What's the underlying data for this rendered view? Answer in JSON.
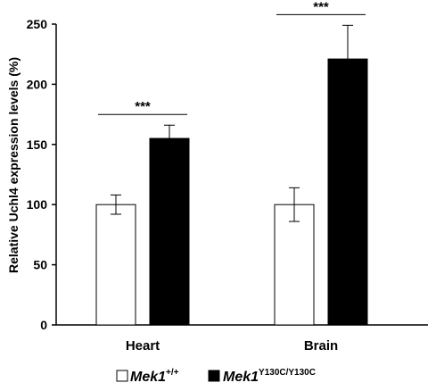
{
  "chart_data": {
    "type": "bar",
    "title": "",
    "ylabel": "Relative Uchl4 expression levels (%)",
    "xlabel": "",
    "ylim": [
      0,
      250
    ],
    "yticks": [
      0,
      50,
      100,
      150,
      200,
      250
    ],
    "categories": [
      "Heart",
      "Brain"
    ],
    "series": [
      {
        "name": "Mek1+/+",
        "legend_base": "Mek1",
        "legend_sup": "+/+",
        "color": "#ffffff",
        "values": [
          100,
          100
        ],
        "errors": [
          8,
          14
        ]
      },
      {
        "name": "Mek1Y130C/Y130C",
        "legend_base": "Mek1",
        "legend_sup": "Y130C/Y130C",
        "color": "#000000",
        "values": [
          155,
          221
        ],
        "errors": [
          11,
          28
        ]
      }
    ],
    "significance": [
      "***",
      "***"
    ],
    "legend_position": "bottom",
    "grid": false
  }
}
